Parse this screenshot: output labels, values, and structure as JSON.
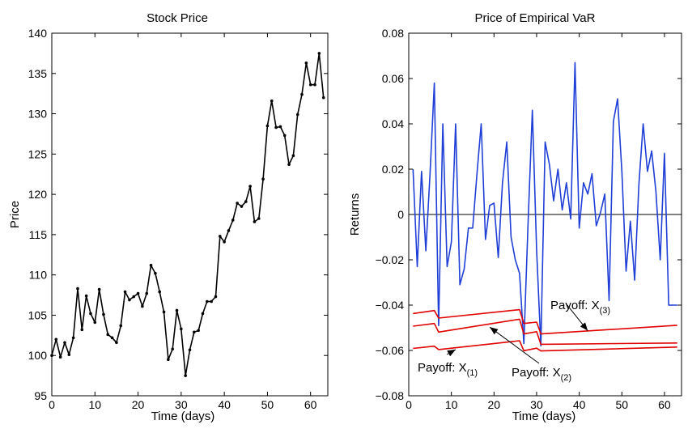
{
  "chart_data": [
    {
      "type": "line",
      "title": "Stock Price",
      "xlabel": "Time (days)",
      "ylabel": "Price",
      "xlim": [
        0,
        64
      ],
      "ylim": [
        95,
        140
      ],
      "xticks": [
        0,
        10,
        20,
        30,
        40,
        50,
        60
      ],
      "yticks": [
        95,
        100,
        105,
        110,
        115,
        120,
        125,
        130,
        135,
        140
      ],
      "grid": false,
      "series": [
        {
          "color": "#000000",
          "marker": "dot",
          "x": [
            0,
            1,
            2,
            3,
            4,
            5,
            6,
            7,
            8,
            9,
            10,
            11,
            12,
            13,
            14,
            15,
            16,
            17,
            18,
            19,
            20,
            21,
            22,
            23,
            24,
            25,
            26,
            27,
            28,
            29,
            30,
            31,
            32,
            33,
            34,
            35,
            36,
            37,
            38,
            39,
            40,
            41,
            42,
            43,
            44,
            45,
            46,
            47,
            48,
            49,
            50,
            51,
            52,
            53,
            54,
            55,
            56,
            57,
            58,
            59,
            60,
            61,
            62,
            63
          ],
          "y": [
            100.0,
            102.0,
            99.8,
            101.6,
            100.1,
            102.2,
            108.3,
            103.2,
            107.4,
            105.2,
            104.1,
            108.2,
            105.1,
            102.6,
            102.2,
            101.6,
            103.7,
            107.9,
            106.9,
            107.3,
            107.7,
            106.1,
            107.7,
            111.2,
            110.2,
            107.9,
            105.4,
            99.5,
            100.8,
            105.6,
            103.3,
            97.5,
            100.7,
            102.9,
            103.1,
            105.2,
            106.7,
            106.7,
            107.3,
            114.8,
            114.1,
            115.5,
            116.8,
            118.9,
            118.5,
            119.1,
            121.0,
            116.6,
            117.0,
            121.9,
            128.5,
            131.6,
            128.3,
            128.4,
            127.3,
            123.7,
            124.8,
            129.9,
            132.4,
            136.3,
            133.6,
            133.6,
            137.5,
            132.0
          ]
        }
      ]
    },
    {
      "type": "line",
      "title": "Price of Empirical VaR",
      "xlabel": "Time (days)",
      "ylabel": "Returns",
      "xlim": [
        0,
        64
      ],
      "ylim": [
        -0.08,
        0.08
      ],
      "xticks": [
        0,
        10,
        20,
        30,
        40,
        50,
        60
      ],
      "yticks": [
        -0.08,
        -0.06,
        -0.04,
        -0.02,
        0,
        0.02,
        0.04,
        0.06,
        0.08
      ],
      "ytick_labels": [
        "−0.08",
        "−0.06",
        "−0.04",
        "−0.02",
        "0",
        "0.02",
        "0.04",
        "0.06",
        "0.08"
      ],
      "grid": false,
      "zero_line": true,
      "series": [
        {
          "color": "#1f3fd6",
          "x": [
            1,
            2,
            3,
            4,
            5,
            6,
            7,
            8,
            9,
            10,
            11,
            12,
            13,
            14,
            15,
            16,
            17,
            18,
            19,
            20,
            21,
            22,
            23,
            24,
            25,
            26,
            27,
            28,
            29,
            30,
            31,
            32,
            33,
            34,
            35,
            36,
            37,
            38,
            39,
            40,
            41,
            42,
            43,
            44,
            45,
            46,
            47,
            48,
            49,
            50,
            51,
            52,
            53,
            54,
            55,
            56,
            57,
            58,
            59,
            60,
            61,
            62,
            63
          ],
          "y": [
            0.02,
            -0.023,
            0.019,
            -0.016,
            0.018,
            0.058,
            -0.049,
            0.04,
            -0.023,
            -0.012,
            0.04,
            -0.031,
            -0.024,
            -0.006,
            -0.006,
            0.018,
            0.04,
            -0.011,
            0.004,
            0.005,
            -0.019,
            0.014,
            0.032,
            -0.01,
            -0.02,
            -0.026,
            -0.057,
            -0.004,
            0.046,
            -0.016,
            -0.058,
            0.032,
            0.022,
            0.006,
            0.02,
            0.002,
            0.014,
            -0.002,
            0.067,
            -0.006,
            0.014,
            0.009,
            0.018,
            -0.005,
            0.001,
            0.009,
            -0.038,
            0.041,
            0.051,
            0.019,
            -0.025,
            -0.003,
            -0.029,
            0.013,
            0.04,
            0.019,
            0.028,
            0.01,
            -0.02,
            0.027,
            -0.04,
            -0.04,
            -0.04
          ]
        },
        {
          "label": "Payoff: X(3)",
          "color": "#e00000",
          "x": [
            1,
            6,
            7,
            26,
            27,
            30,
            31,
            63
          ],
          "y": [
            -0.0437,
            -0.0424,
            -0.0457,
            -0.042,
            -0.0481,
            -0.0475,
            -0.0527,
            -0.0489
          ]
        },
        {
          "label": "Payoff: X(2)",
          "color": "#e00000",
          "x": [
            1,
            6,
            7,
            26,
            27,
            30,
            31,
            63
          ],
          "y": [
            -0.0493,
            -0.0481,
            -0.0519,
            -0.0462,
            -0.0527,
            -0.0517,
            -0.0573,
            -0.0567
          ]
        },
        {
          "label": "Payoff: X(1)",
          "color": "#e00000",
          "x": [
            1,
            6,
            7,
            26,
            27,
            30,
            31,
            63
          ],
          "y": [
            -0.0591,
            -0.0581,
            -0.0596,
            -0.0557,
            -0.0601,
            -0.059,
            -0.0602,
            -0.0585
          ]
        }
      ],
      "annotations": [
        {
          "name": "annot-x3",
          "base": "Payoff: X",
          "sub": "(3)",
          "arrow_to": [
            42,
            -0.0513
          ]
        },
        {
          "name": "annot-x2",
          "base": "Payoff: X",
          "sub": "(2)",
          "arrow_to": [
            19,
            -0.0497
          ]
        },
        {
          "name": "annot-x1",
          "base": "Payoff: X",
          "sub": "(1)",
          "arrow_to": [
            11,
            -0.0596
          ]
        }
      ]
    }
  ]
}
